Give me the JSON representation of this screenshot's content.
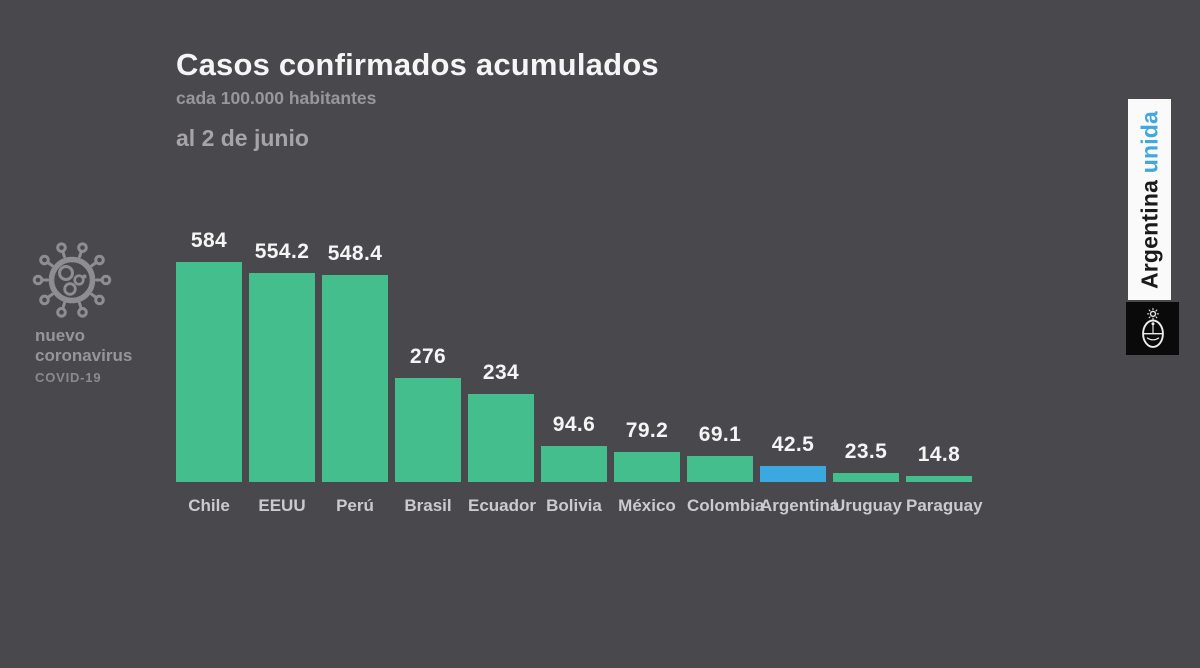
{
  "header": {
    "title": "Casos confirmados acumulados",
    "subtitle": "cada 100.000 habitantes",
    "date_label": "al 2 de junio"
  },
  "badge": {
    "name_line1": "nuevo",
    "name_line2": "coronavirus",
    "sub": "COVID-19"
  },
  "banner": {
    "text_black": "Argentina",
    "text_blue": "unida"
  },
  "colors": {
    "background": "#48484D",
    "bar_default": "#45BE8E",
    "bar_highlight": "#3BA9DF",
    "banner_blue": "#41A8DC"
  },
  "chart_data": {
    "type": "bar",
    "title": "Casos confirmados acumulados",
    "subtitle": "cada 100.000 habitantes",
    "note": "al 2 de junio",
    "categories": [
      "Chile",
      "EEUU",
      "Perú",
      "Brasil",
      "Ecuador",
      "Bolivia",
      "México",
      "Colombia",
      "Argentina",
      "Uruguay",
      "Paraguay"
    ],
    "values": [
      584,
      554.2,
      548.4,
      276,
      234,
      94.6,
      79.2,
      69.1,
      42.5,
      23.5,
      14.8
    ],
    "value_labels": [
      "584",
      "554.2",
      "548.4",
      "276",
      "234",
      "94.6",
      "79.2",
      "69.1",
      "42.5",
      "23.5",
      "14.8"
    ],
    "highlight_category": "Argentina",
    "ylim": [
      0,
      584
    ],
    "grid": false,
    "legend": false
  }
}
